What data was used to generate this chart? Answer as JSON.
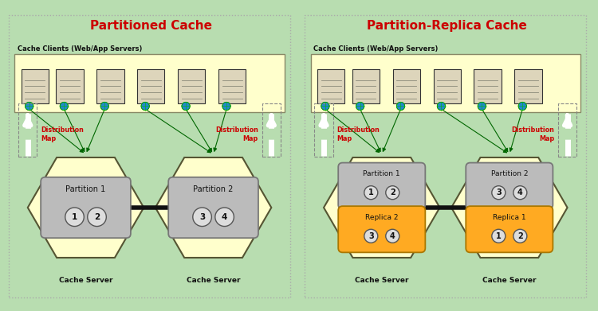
{
  "fig_width": 7.5,
  "fig_height": 3.91,
  "bg_color": "#b8ddb0",
  "panel_bg": "#b8ddb0",
  "clients_box_color": "#ffffcc",
  "hex_fill": "#ffffcc",
  "hex_edge": "#555533",
  "partition_fill": "#bbbbbb",
  "partition_edge": "#777777",
  "replica_fill": "#ffaa22",
  "replica_edge": "#aa7700",
  "circle_fill": "#dddddd",
  "circle_edge": "#555555",
  "title_left": "Partitioned Cache",
  "title_right": "Partition-Replica Cache",
  "title_color": "#cc0000",
  "title_fontsize": 11,
  "clients_label": "Cache Clients (Web/App Servers)",
  "cache_server_label": "Cache Server",
  "dist_map_label": "Distribution\nMap",
  "dist_map_color": "#cc0000",
  "border_color": "#999977",
  "line_color": "#006600",
  "arrow_color": "#ffffff",
  "server_body_color": "#ddd5bb",
  "server_edge_color": "#333333"
}
